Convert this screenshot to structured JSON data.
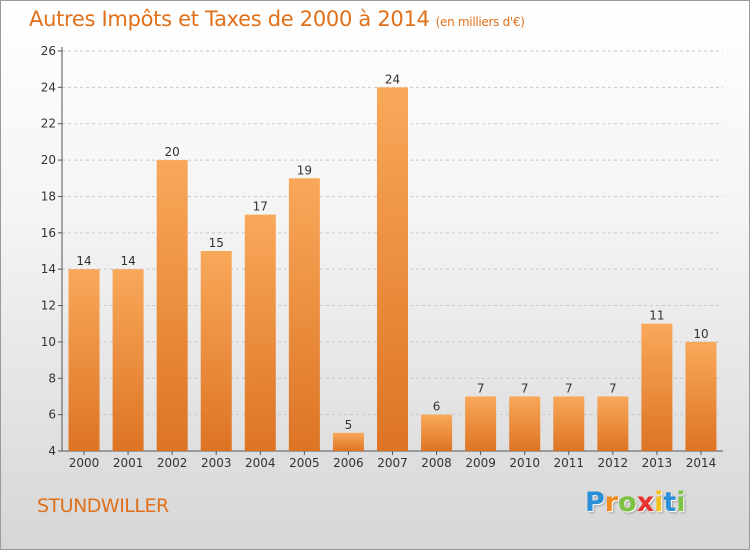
{
  "header": {
    "title": "Autres Impôts et Taxes de 2000 à 2014",
    "subtitle": "(en milliers d'€)"
  },
  "footer": {
    "commune": "STUNDWILLER",
    "logo_letters": [
      "P",
      "r",
      "o",
      "x",
      "i",
      "t",
      "i"
    ],
    "logo_colors": [
      "#2a8fd6",
      "#f08a1c",
      "#7cc243",
      "#e8312f",
      "#f2c21b",
      "#2a8fd6",
      "#7cc243"
    ]
  },
  "colors": {
    "accent": "#e0701a",
    "bar_light": "#f9a85a",
    "bar_dark": "#dd7424"
  },
  "chart_data": {
    "type": "bar",
    "categories": [
      "2000",
      "2001",
      "2002",
      "2003",
      "2004",
      "2005",
      "2006",
      "2007",
      "2008",
      "2009",
      "2010",
      "2011",
      "2012",
      "2013",
      "2014"
    ],
    "values": [
      14,
      14,
      20,
      15,
      17,
      19,
      5,
      24,
      6,
      7,
      7,
      7,
      7,
      11,
      10
    ],
    "data_labels": [
      "14",
      "14",
      "20",
      "15",
      "17",
      "19",
      "5",
      "24",
      "6",
      "7",
      "7",
      "7",
      "7",
      "11",
      "10"
    ],
    "ylim": [
      4,
      26
    ],
    "yticks": [
      "4",
      "6",
      "8",
      "10",
      "12",
      "14",
      "16",
      "18",
      "20",
      "22",
      "24",
      "26"
    ],
    "grid": true,
    "legend": "none"
  }
}
